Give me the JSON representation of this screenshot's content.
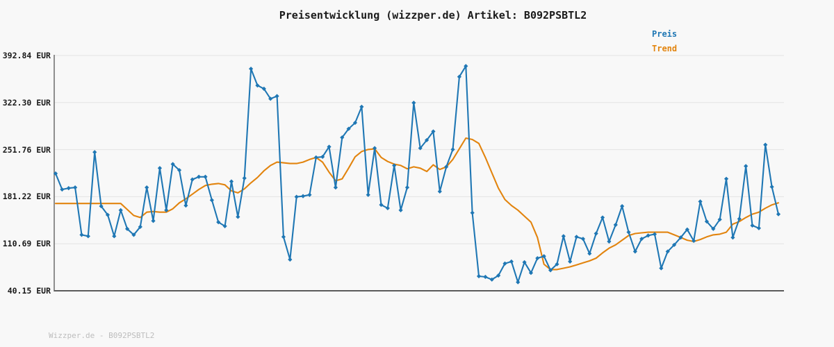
{
  "title": "Preisentwicklung (wizzper.de) Artikel: B092PSBTL2",
  "footer": "Wizzper.de - B092PSBTL2",
  "legend": [
    {
      "label": "Preis",
      "color": "#1f77b4"
    },
    {
      "label": "Trend",
      "color": "#e2840e"
    }
  ],
  "y_axis": {
    "ticks": [
      "392.84 EUR",
      "322.30 EUR",
      "251.76 EUR",
      "181.22 EUR",
      "110.69 EUR",
      "40.15 EUR"
    ],
    "values": [
      392.84,
      322.3,
      251.76,
      181.22,
      110.69,
      40.15
    ]
  },
  "chart_data": {
    "type": "line",
    "title": "Preisentwicklung (wizzper.de) Artikel: B092PSBTL2",
    "xlabel": "",
    "ylabel": "EUR",
    "ylim": [
      40.15,
      392.84
    ],
    "grid": "horizontal",
    "x_tick_labels": [],
    "legend_position": "top-right",
    "colors": {
      "axis": "#6a6a6a",
      "grid": "#e4e4e4",
      "background": "#f8f8f8"
    },
    "series": [
      {
        "name": "Preis",
        "color": "#1f77b4",
        "marker": "diamond",
        "values": [
          216,
          192,
          194,
          195,
          124,
          122,
          248,
          167,
          154,
          122,
          161,
          133,
          124,
          136,
          195,
          145,
          224,
          161,
          230,
          221,
          168,
          207,
          211,
          211,
          176,
          143,
          137,
          204,
          151,
          209,
          373,
          348,
          343,
          328,
          332,
          121,
          87,
          181,
          182,
          184,
          240,
          241,
          256,
          195,
          270,
          283,
          292,
          316,
          184,
          254,
          169,
          164,
          228,
          161,
          195,
          322,
          254,
          266,
          279,
          189,
          226,
          252,
          361,
          377,
          157,
          62,
          61,
          57,
          63,
          81,
          84,
          53,
          83,
          67,
          89,
          92,
          71,
          80,
          122,
          84,
          121,
          118,
          96,
          126,
          150,
          114,
          139,
          167,
          128,
          99,
          118,
          123,
          125,
          74,
          99,
          109,
          120,
          132,
          115,
          174,
          144,
          133,
          147,
          208,
          120,
          148,
          227,
          138,
          134,
          259,
          196,
          155
        ]
      },
      {
        "name": "Trend",
        "color": "#e2840e",
        "marker": "none",
        "values": [
          171,
          171,
          171,
          171,
          171,
          171,
          171,
          171,
          171,
          171,
          171,
          162,
          153,
          150,
          158,
          159,
          158,
          158,
          163,
          172,
          178,
          185,
          192,
          198,
          200,
          201,
          199,
          190,
          187,
          193,
          202,
          210,
          220,
          228,
          233,
          232,
          231,
          231,
          233,
          237,
          240,
          233,
          218,
          205,
          208,
          224,
          241,
          249,
          252,
          253,
          240,
          234,
          230,
          228,
          223,
          226,
          224,
          219,
          229,
          222,
          226,
          237,
          253,
          269,
          267,
          261,
          240,
          217,
          194,
          177,
          168,
          161,
          152,
          143,
          120,
          80,
          72,
          72,
          74,
          76,
          79,
          82,
          85,
          89,
          97,
          104,
          109,
          116,
          123,
          126,
          127,
          128,
          128,
          128,
          128,
          124,
          120,
          116,
          114,
          117,
          121,
          124,
          125,
          128,
          140,
          144,
          150,
          155,
          158,
          164,
          169,
          172
        ]
      }
    ]
  }
}
